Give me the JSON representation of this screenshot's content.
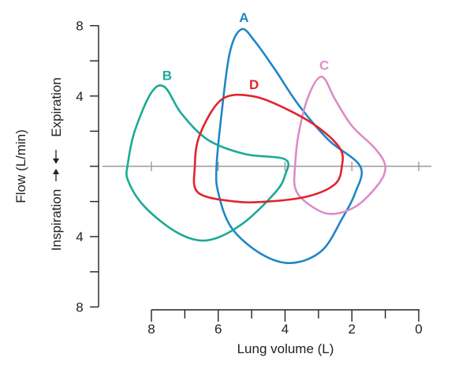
{
  "chart_data": {
    "type": "line",
    "xlabel": "Lung volume (L)",
    "ylabel_parts": {
      "inspiration": "Inspiration",
      "expiration": "Expiration",
      "flow": "Flow (L/min)"
    },
    "xlim": [
      8,
      0
    ],
    "x_ticks": [
      8,
      6,
      4,
      2,
      0
    ],
    "y_tick_labels": [
      {
        "label": "8",
        "value": 8
      },
      {
        "label": "4",
        "value": 4
      },
      {
        "label": "4",
        "value": -4
      },
      {
        "label": "8",
        "value": -8
      }
    ],
    "ylim": [
      -8,
      8
    ],
    "series": [
      {
        "name": "A",
        "color": "#1f86c8",
        "points": [
          [
            6.05,
            0
          ],
          [
            5.9,
            3.0
          ],
          [
            5.65,
            6.5
          ],
          [
            5.3,
            7.8
          ],
          [
            4.9,
            7.1
          ],
          [
            4.3,
            5.5
          ],
          [
            3.6,
            3.5
          ],
          [
            2.7,
            1.5
          ],
          [
            1.75,
            0
          ],
          [
            1.9,
            -1.5
          ],
          [
            2.3,
            -3.0
          ],
          [
            2.9,
            -4.8
          ],
          [
            3.8,
            -5.5
          ],
          [
            4.7,
            -5.0
          ],
          [
            5.6,
            -3.5
          ],
          [
            6.0,
            -1.5
          ],
          [
            6.05,
            0
          ]
        ]
      },
      {
        "name": "B",
        "color": "#1aaa96",
        "points": [
          [
            8.7,
            0.2
          ],
          [
            8.5,
            2.0
          ],
          [
            8.0,
            4.2
          ],
          [
            7.6,
            4.5
          ],
          [
            7.1,
            3.0
          ],
          [
            6.3,
            1.5
          ],
          [
            5.2,
            0.7
          ],
          [
            4.0,
            0.4
          ],
          [
            4.0,
            -0.5
          ],
          [
            4.3,
            -1.5
          ],
          [
            5.3,
            -3.3
          ],
          [
            6.3,
            -4.2
          ],
          [
            7.2,
            -3.8
          ],
          [
            8.2,
            -2.3
          ],
          [
            8.7,
            -0.8
          ],
          [
            8.7,
            0.2
          ]
        ]
      },
      {
        "name": "C",
        "color": "#dc8cc8",
        "points": [
          [
            3.7,
            0
          ],
          [
            3.6,
            1.8
          ],
          [
            3.3,
            4.0
          ],
          [
            2.9,
            5.1
          ],
          [
            2.5,
            3.8
          ],
          [
            2.0,
            2.3
          ],
          [
            1.3,
            1.0
          ],
          [
            1.0,
            0
          ],
          [
            1.2,
            -1.0
          ],
          [
            1.9,
            -2.3
          ],
          [
            2.7,
            -2.7
          ],
          [
            3.4,
            -2.0
          ],
          [
            3.7,
            -1.2
          ],
          [
            3.7,
            0
          ]
        ]
      },
      {
        "name": "D",
        "color": "#e0242c",
        "points": [
          [
            6.7,
            0
          ],
          [
            6.55,
            1.8
          ],
          [
            5.9,
            3.8
          ],
          [
            5.0,
            4.0
          ],
          [
            4.0,
            3.3
          ],
          [
            3.0,
            2.2
          ],
          [
            2.35,
            1.0
          ],
          [
            2.3,
            0
          ],
          [
            2.5,
            -1.0
          ],
          [
            3.3,
            -1.7
          ],
          [
            4.5,
            -2.0
          ],
          [
            5.5,
            -2.0
          ],
          [
            6.6,
            -1.5
          ],
          [
            6.7,
            0
          ]
        ]
      }
    ]
  }
}
